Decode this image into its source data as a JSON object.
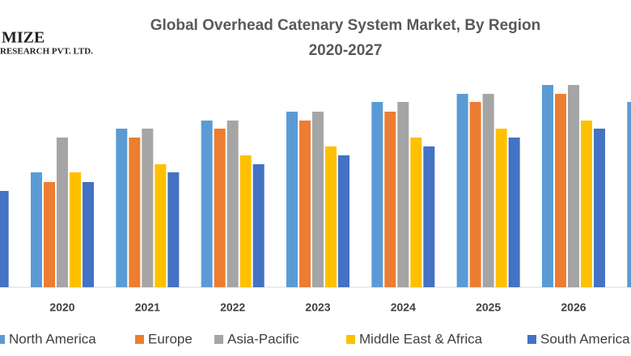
{
  "logo": {
    "line1": "MIZE",
    "line2": "RESEARCH PVT. LTD."
  },
  "chart_data": {
    "type": "bar",
    "title": "Global Overhead Catenary System Market, By Region",
    "subtitle": "2020-2027",
    "categories": [
      null,
      "2020",
      "2021",
      "2022",
      "2023",
      "2024",
      "2025",
      "2026",
      null
    ],
    "series": [
      {
        "name": "North America",
        "color": "#5b9bd5",
        "values": [
          null,
          142,
          196,
          206,
          217,
          229,
          239,
          250,
          229
        ]
      },
      {
        "name": "Europe",
        "color": "#ed7d31",
        "values": [
          null,
          130,
          185,
          196,
          206,
          217,
          229,
          239,
          null
        ]
      },
      {
        "name": "Asia-Pacific",
        "color": "#a5a5a5",
        "values": [
          null,
          185,
          196,
          206,
          217,
          229,
          239,
          250,
          null
        ]
      },
      {
        "name": "Middle East & Africa",
        "color": "#ffc000",
        "values": [
          null,
          142,
          152,
          163,
          174,
          185,
          196,
          206,
          null
        ]
      },
      {
        "name": "South America",
        "color": "#4472c4",
        "values": [
          119,
          130,
          142,
          152,
          163,
          174,
          185,
          196,
          null
        ]
      }
    ],
    "ylim": [
      0,
      260
    ]
  }
}
